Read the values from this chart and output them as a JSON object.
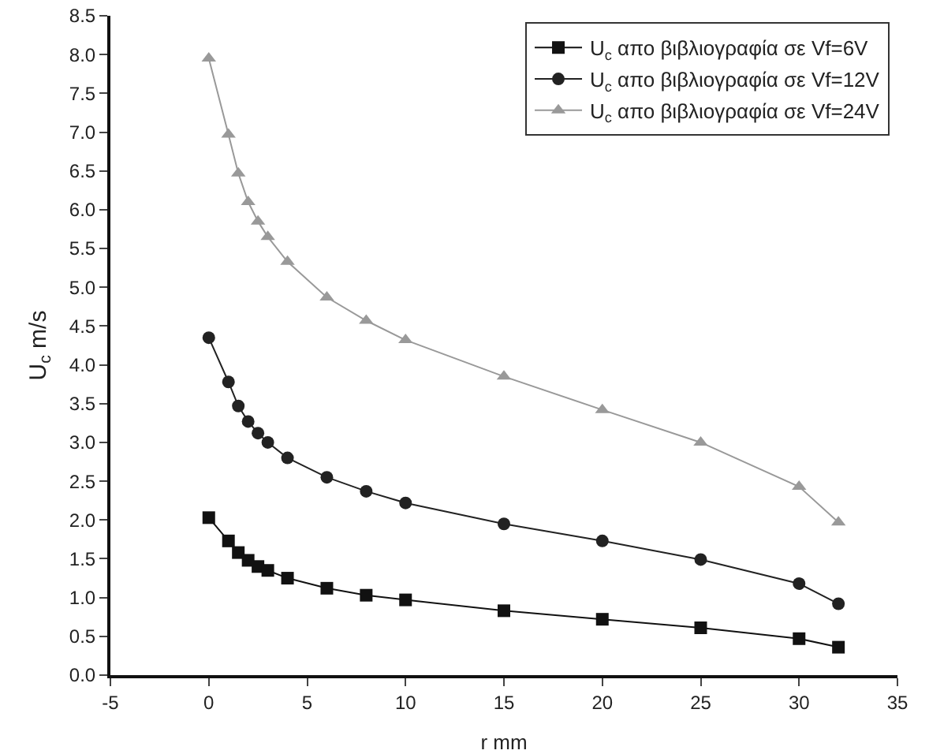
{
  "chart_data": {
    "type": "line",
    "xlabel": "r mm",
    "ylabel": "U$_{c}$ m/s",
    "x": [
      0,
      1,
      1.5,
      2,
      2.5,
      3,
      4,
      6,
      8,
      10,
      15,
      20,
      25,
      30,
      32
    ],
    "xlim": [
      -5,
      35
    ],
    "xticks": [
      -5,
      0,
      5,
      10,
      15,
      20,
      25,
      30,
      35
    ],
    "ylim": [
      0,
      8.5
    ],
    "yticks": [
      {
        "value": 0,
        "label": "0.0"
      },
      {
        "value": 0.5,
        "label": "0.5"
      },
      {
        "value": 1,
        "label": "1.0"
      },
      {
        "value": 1.5,
        "label": "1.5"
      },
      {
        "value": 2,
        "label": "2.0"
      },
      {
        "value": 2.5,
        "label": "2.5"
      },
      {
        "value": 3,
        "label": "3.0"
      },
      {
        "value": 3.5,
        "label": "3.5"
      },
      {
        "value": 4,
        "label": "4.0"
      },
      {
        "value": 4.5,
        "label": "4.5"
      },
      {
        "value": 5,
        "label": "5.0"
      },
      {
        "value": 5.5,
        "label": "5.5"
      },
      {
        "value": 6,
        "label": "6.0"
      },
      {
        "value": 6.5,
        "label": "6.5"
      },
      {
        "value": 7,
        "label": "7.0"
      },
      {
        "value": 7.5,
        "label": "7.5"
      },
      {
        "value": 8,
        "label": "8.0"
      },
      {
        "value": 8.5,
        "label": "8.5"
      }
    ],
    "grid": false,
    "legend": "top right",
    "series": [
      {
        "name": "U$_{c}$ απο βιβλιογραφία σε Vf=6V",
        "color": "#111111",
        "marker": "square",
        "values": [
          2.03,
          1.73,
          1.58,
          1.48,
          1.4,
          1.35,
          1.25,
          1.12,
          1.03,
          0.97,
          0.83,
          0.72,
          0.61,
          0.47,
          0.36
        ]
      },
      {
        "name": "U$_{c}$ απο βιβλιογραφία σε Vf=12V",
        "color": "#222222",
        "marker": "circle",
        "values": [
          4.35,
          3.78,
          3.47,
          3.27,
          3.12,
          3.0,
          2.8,
          2.55,
          2.37,
          2.22,
          1.95,
          1.73,
          1.49,
          1.18,
          0.92
        ]
      },
      {
        "name": "U$_{c}$ απο βιβλιογραφία σε Vf=24V",
        "color": "#999999",
        "marker": "triangle",
        "values": [
          7.95,
          6.97,
          6.47,
          6.1,
          5.85,
          5.65,
          5.33,
          4.87,
          4.57,
          4.32,
          3.85,
          3.42,
          3.0,
          2.43,
          1.97
        ]
      }
    ]
  }
}
